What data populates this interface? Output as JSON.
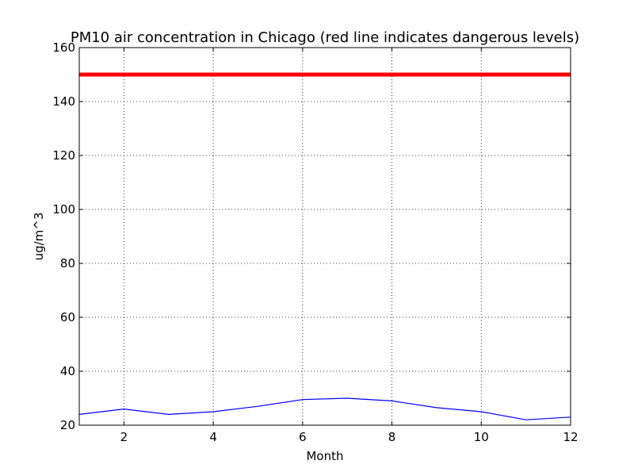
{
  "chart_data": {
    "type": "line",
    "title": "PM10 air concentration in Chicago (red line indicates dangerous levels)",
    "xlabel": "Month",
    "ylabel": "ug/m^3",
    "xlim": [
      1,
      12
    ],
    "ylim": [
      20,
      160
    ],
    "xticks": [
      2,
      4,
      6,
      8,
      10,
      12
    ],
    "yticks": [
      20,
      40,
      60,
      80,
      100,
      120,
      140,
      160
    ],
    "grid": true,
    "x": [
      1,
      2,
      3,
      4,
      5,
      6,
      7,
      8,
      9,
      10,
      11,
      12
    ],
    "series": [
      {
        "values": [
          24,
          26,
          24,
          25,
          27,
          29.5,
          30,
          29,
          26.5,
          25,
          22,
          23
        ],
        "color": "#0000ff"
      }
    ],
    "threshold": {
      "value": 150,
      "color": "#ff0000"
    }
  }
}
